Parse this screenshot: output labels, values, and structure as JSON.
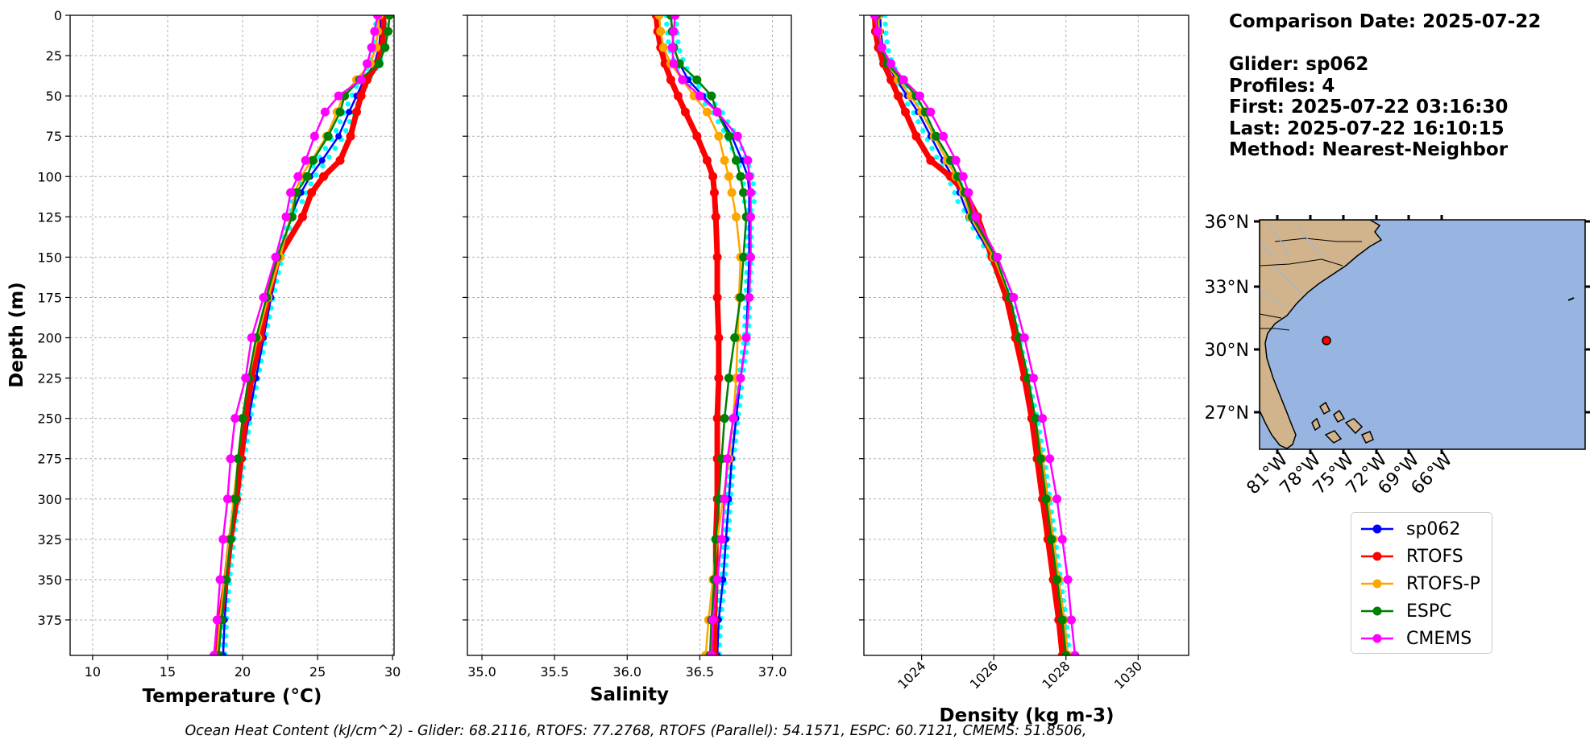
{
  "info": {
    "comparison_date": "Comparison Date: 2025-07-22",
    "glider": "Glider: sp062",
    "profiles": "Profiles: 4",
    "first": "First: 2025-07-22 03:16:30",
    "last": "Last: 2025-07-22 16:10:15",
    "method": "Method: Nearest-Neighbor"
  },
  "footer": "Ocean Heat Content (kJ/cm^2) - Glider: 68.2116,  RTOFS: 77.2768,  RTOFS (Parallel): 54.1571,  ESPC: 60.7121,  CMEMS: 51.8506,",
  "legend": [
    {
      "name": "sp062",
      "color": "#0000ff"
    },
    {
      "name": "RTOFS",
      "color": "#ff0000"
    },
    {
      "name": "RTOFS-P",
      "color": "#ffa500"
    },
    {
      "name": "ESPC",
      "color": "#008000"
    },
    {
      "name": "CMEMS",
      "color": "#ff00ff"
    }
  ],
  "colors": {
    "glider_points": "#00ffff",
    "land": "#d2b48c",
    "ocean": "#98b4e0",
    "rivers": "#a0b4d8"
  },
  "map": {
    "lat_ticks": [
      "36°N",
      "33°N",
      "30°N",
      "27°N"
    ],
    "lon_ticks": [
      "81°W",
      "78°W",
      "75°W",
      "72°W",
      "69°W",
      "66°W"
    ],
    "marker_lon": -78.3,
    "marker_lat": 30.45
  },
  "chart_data": [
    {
      "type": "line",
      "xlabel": "Temperature (°C)",
      "ylabel": "Depth (m)",
      "xlim": [
        8.5,
        30.1
      ],
      "ylim": [
        397,
        0
      ],
      "xticks": [
        "10",
        "15",
        "20",
        "25",
        "30"
      ],
      "yticks": [
        "0",
        "25",
        "50",
        "75",
        "100",
        "125",
        "150",
        "175",
        "200",
        "225",
        "250",
        "275",
        "300",
        "325",
        "350",
        "375"
      ],
      "grid": true,
      "depth": [
        0,
        10,
        20,
        30,
        40,
        50,
        60,
        75,
        90,
        100,
        110,
        125,
        150,
        175,
        200,
        225,
        250,
        275,
        300,
        325,
        350,
        375,
        397
      ],
      "series": [
        {
          "name": "sp062",
          "values": [
            29.2,
            29.2,
            29.1,
            28.8,
            28.1,
            27.6,
            27.1,
            26.4,
            25.3,
            24.5,
            23.9,
            23.2,
            22.5,
            21.9,
            21.4,
            20.9,
            20.4,
            20.0,
            19.6,
            19.3,
            19.0,
            18.8,
            18.7
          ]
        },
        {
          "name": "RTOFS",
          "values": [
            29.4,
            29.4,
            29.3,
            29.0,
            28.3,
            27.9,
            27.6,
            27.2,
            26.5,
            25.4,
            24.6,
            24.0,
            22.4,
            21.7,
            21.2,
            20.6,
            20.2,
            19.9,
            19.6,
            19.2,
            18.9,
            18.5,
            18.2
          ]
        },
        {
          "name": "RTOFS-P",
          "values": [
            29.1,
            29.0,
            28.9,
            28.5,
            27.6,
            26.7,
            26.3,
            25.6,
            24.6,
            23.9,
            23.5,
            23.2,
            22.5,
            21.7,
            21.0,
            20.4,
            20.0,
            19.7,
            19.4,
            19.1,
            18.8,
            18.5,
            18.3
          ]
        },
        {
          "name": "ESPC",
          "values": [
            29.8,
            29.7,
            29.5,
            29.1,
            27.8,
            26.8,
            26.5,
            25.7,
            24.7,
            24.3,
            23.6,
            23.3,
            22.3,
            21.6,
            20.9,
            20.4,
            20.0,
            19.7,
            19.5,
            19.2,
            18.9,
            18.6,
            18.4
          ]
        },
        {
          "name": "CMEMS",
          "values": [
            29.0,
            28.8,
            28.6,
            28.3,
            27.9,
            26.4,
            25.5,
            24.8,
            24.2,
            23.7,
            23.2,
            22.9,
            22.2,
            21.4,
            20.6,
            20.2,
            19.5,
            19.2,
            19.0,
            18.7,
            18.5,
            18.3,
            18.1
          ]
        }
      ]
    },
    {
      "type": "line",
      "xlabel": "Salinity",
      "ylim": [
        397,
        0
      ],
      "xlim": [
        34.9,
        37.13
      ],
      "xticks": [
        "35.0",
        "35.5",
        "36.0",
        "36.5",
        "37.0"
      ],
      "grid": true,
      "depth": [
        0,
        10,
        20,
        30,
        40,
        50,
        60,
        75,
        90,
        100,
        110,
        125,
        150,
        175,
        200,
        225,
        250,
        275,
        300,
        325,
        350,
        375,
        397
      ],
      "series": [
        {
          "name": "sp062",
          "values": [
            36.3,
            36.31,
            36.32,
            36.36,
            36.42,
            36.52,
            36.62,
            36.72,
            36.79,
            36.83,
            36.84,
            36.84,
            36.84,
            36.83,
            36.82,
            36.78,
            36.75,
            36.72,
            36.7,
            36.68,
            36.66,
            36.63,
            36.62
          ]
        },
        {
          "name": "RTOFS",
          "values": [
            36.2,
            36.21,
            36.23,
            36.26,
            36.3,
            36.35,
            36.4,
            36.48,
            36.55,
            36.59,
            36.6,
            36.61,
            36.62,
            36.62,
            36.63,
            36.63,
            36.62,
            36.62,
            36.62,
            36.61,
            36.61,
            36.6,
            36.6
          ]
        },
        {
          "name": "RTOFS-P",
          "values": [
            36.22,
            36.23,
            36.25,
            36.3,
            36.38,
            36.46,
            36.55,
            36.63,
            36.67,
            36.7,
            36.72,
            36.75,
            36.78,
            36.77,
            36.76,
            36.75,
            36.73,
            36.7,
            36.66,
            36.62,
            36.59,
            36.56,
            36.54
          ]
        },
        {
          "name": "ESPC",
          "values": [
            36.3,
            36.31,
            36.32,
            36.36,
            36.48,
            36.58,
            36.62,
            36.7,
            36.75,
            36.78,
            36.8,
            36.82,
            36.8,
            36.78,
            36.74,
            36.7,
            36.67,
            36.65,
            36.63,
            36.61,
            36.6,
            36.58,
            36.57
          ]
        },
        {
          "name": "CMEMS",
          "values": [
            36.33,
            36.32,
            36.31,
            36.32,
            36.38,
            36.5,
            36.62,
            36.76,
            36.83,
            36.84,
            36.85,
            36.85,
            36.85,
            36.84,
            36.82,
            36.78,
            36.73,
            36.69,
            36.67,
            36.65,
            36.62,
            36.59,
            36.58
          ]
        }
      ]
    },
    {
      "type": "line",
      "xlabel": "Density (kg m-3)",
      "ylim": [
        397,
        0
      ],
      "xlim": [
        1022.4,
        1031.4
      ],
      "xticks": [
        "1024",
        "1026",
        "1028",
        "1030"
      ],
      "grid": true,
      "depth": [
        0,
        10,
        20,
        30,
        40,
        50,
        60,
        75,
        90,
        100,
        110,
        125,
        150,
        175,
        200,
        225,
        250,
        275,
        300,
        325,
        350,
        375,
        397
      ],
      "series": [
        {
          "name": "sp062",
          "values": [
            1022.85,
            1022.87,
            1022.92,
            1023.05,
            1023.3,
            1023.6,
            1023.9,
            1024.25,
            1024.6,
            1024.85,
            1025.05,
            1025.3,
            1025.95,
            1026.4,
            1026.65,
            1026.9,
            1027.15,
            1027.35,
            1027.5,
            1027.65,
            1027.8,
            1027.95,
            1028.05
          ]
        },
        {
          "name": "RTOFS",
          "values": [
            1022.7,
            1022.72,
            1022.8,
            1022.95,
            1023.15,
            1023.35,
            1023.55,
            1023.85,
            1024.25,
            1024.8,
            1025.2,
            1025.55,
            1025.95,
            1026.35,
            1026.6,
            1026.85,
            1027.05,
            1027.2,
            1027.35,
            1027.5,
            1027.65,
            1027.8,
            1027.9
          ]
        },
        {
          "name": "RTOFS-P",
          "values": [
            1022.8,
            1022.82,
            1022.9,
            1023.05,
            1023.35,
            1023.7,
            1024.0,
            1024.35,
            1024.7,
            1024.95,
            1025.15,
            1025.35,
            1026.0,
            1026.45,
            1026.7,
            1026.95,
            1027.15,
            1027.35,
            1027.5,
            1027.65,
            1027.8,
            1027.95,
            1028.05
          ]
        },
        {
          "name": "ESPC",
          "values": [
            1022.75,
            1022.78,
            1022.88,
            1023.05,
            1023.45,
            1023.85,
            1024.1,
            1024.4,
            1024.8,
            1025.0,
            1025.2,
            1025.4,
            1026.05,
            1026.45,
            1026.7,
            1026.95,
            1027.15,
            1027.3,
            1027.45,
            1027.6,
            1027.75,
            1027.9,
            1028.0
          ]
        },
        {
          "name": "CMEMS",
          "values": [
            1022.7,
            1022.78,
            1022.9,
            1023.15,
            1023.5,
            1023.95,
            1024.25,
            1024.6,
            1024.95,
            1025.15,
            1025.3,
            1025.5,
            1026.1,
            1026.55,
            1026.85,
            1027.1,
            1027.35,
            1027.55,
            1027.75,
            1027.9,
            1028.05,
            1028.15,
            1028.25
          ]
        }
      ]
    }
  ]
}
